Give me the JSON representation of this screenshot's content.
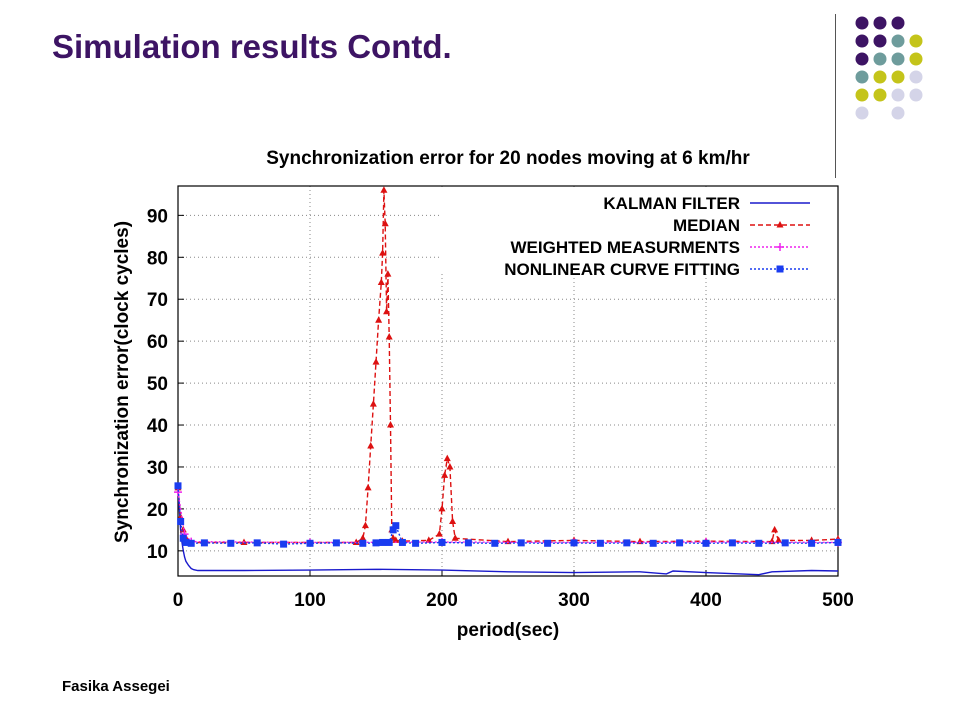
{
  "slide": {
    "title": "Simulation results Contd.",
    "author": "Fasika Assegei"
  },
  "decor": {
    "dot_colors": {
      "purple": "#3d1464",
      "teal": "#6e9c9c",
      "olive": "#c4c41a",
      "lavender": "#d4d4e8"
    },
    "dot_grid": [
      [
        "purple",
        "purple",
        "purple",
        null
      ],
      [
        "purple",
        "purple",
        "teal",
        "olive"
      ],
      [
        "purple",
        "teal",
        "teal",
        "olive"
      ],
      [
        "teal",
        "olive",
        "olive",
        "lavender"
      ],
      [
        "olive",
        "olive",
        "lavender",
        "lavender"
      ],
      [
        "lavender",
        null,
        "lavender",
        null
      ]
    ]
  },
  "chart_data": {
    "type": "line",
    "title": "Synchronization error for 20 nodes moving at 6 km/hr",
    "xlabel": "period(sec)",
    "ylabel": "Synchronization error(clock cycles)",
    "xlim": [
      0,
      500
    ],
    "ylim": [
      4,
      97
    ],
    "xticks": [
      "0",
      "100",
      "200",
      "300",
      "400",
      "500"
    ],
    "yticks": [
      "10",
      "20",
      "30",
      "40",
      "50",
      "60",
      "70",
      "80",
      "90"
    ],
    "grid": true,
    "legend_position": "top-right",
    "series": [
      {
        "name": "KALMAN FILTER",
        "color": "#1a1acc",
        "style": "solid",
        "marker": "none",
        "x": [
          0,
          1,
          2,
          3,
          4,
          5,
          6,
          8,
          10,
          12,
          15,
          50,
          100,
          150,
          200,
          250,
          300,
          350,
          370,
          375,
          400,
          440,
          450,
          480,
          500
        ],
        "y": [
          25,
          20,
          15,
          12,
          10,
          8.5,
          7.5,
          6.5,
          5.8,
          5.5,
          5.3,
          5.3,
          5.4,
          5.6,
          5.4,
          5,
          4.8,
          5,
          4.5,
          5.2,
          4.8,
          4.3,
          5,
          5.3,
          5.2
        ]
      },
      {
        "name": "MEDIAN",
        "color": "#dd1111",
        "style": "dashed",
        "marker": "triangle",
        "x": [
          0,
          2,
          4,
          6,
          10,
          50,
          100,
          135,
          140,
          142,
          144,
          146,
          148,
          150,
          152,
          154,
          155,
          156,
          157,
          158,
          159,
          160,
          161,
          162,
          163,
          165,
          170,
          190,
          198,
          200,
          202,
          204,
          206,
          208,
          210,
          250,
          300,
          350,
          400,
          450,
          452,
          455,
          480,
          500
        ],
        "y": [
          25,
          18,
          15,
          13,
          12,
          12,
          12,
          12,
          13,
          16,
          25,
          35,
          45,
          55,
          65,
          74,
          81,
          96,
          88,
          67,
          76,
          61,
          40,
          15,
          13,
          12.5,
          12.3,
          12.5,
          14,
          20,
          28,
          32,
          30,
          17,
          13,
          12.2,
          12.5,
          12.2,
          12.3,
          12.2,
          15,
          12.5,
          12.5,
          12.8
        ]
      },
      {
        "name": "WEIGHTED MEASURMENTS",
        "color": "#ee22ee",
        "style": "dotted",
        "marker": "plus",
        "x": [
          0,
          5,
          10,
          100,
          200,
          300,
          400,
          500
        ],
        "y": [
          24,
          14,
          12.2,
          12,
          12.1,
          12,
          12.1,
          12
        ]
      },
      {
        "name": "NONLINEAR CURVE FITTING",
        "color": "#1a3cf0",
        "style": "dotted",
        "marker": "square",
        "x": [
          0,
          2,
          4,
          6,
          10,
          20,
          40,
          60,
          80,
          100,
          120,
          140,
          150,
          155,
          160,
          163,
          165,
          170,
          180,
          200,
          220,
          240,
          260,
          280,
          300,
          320,
          340,
          360,
          380,
          400,
          420,
          440,
          460,
          480,
          500
        ],
        "y": [
          25.5,
          17,
          13,
          12,
          11.8,
          11.9,
          11.8,
          11.9,
          11.6,
          11.8,
          11.9,
          11.8,
          11.9,
          12,
          12,
          15,
          16,
          12,
          11.8,
          12,
          11.9,
          11.8,
          11.9,
          11.8,
          11.9,
          11.8,
          11.9,
          11.8,
          11.9,
          11.8,
          11.9,
          11.8,
          11.9,
          11.8,
          12
        ]
      }
    ]
  }
}
